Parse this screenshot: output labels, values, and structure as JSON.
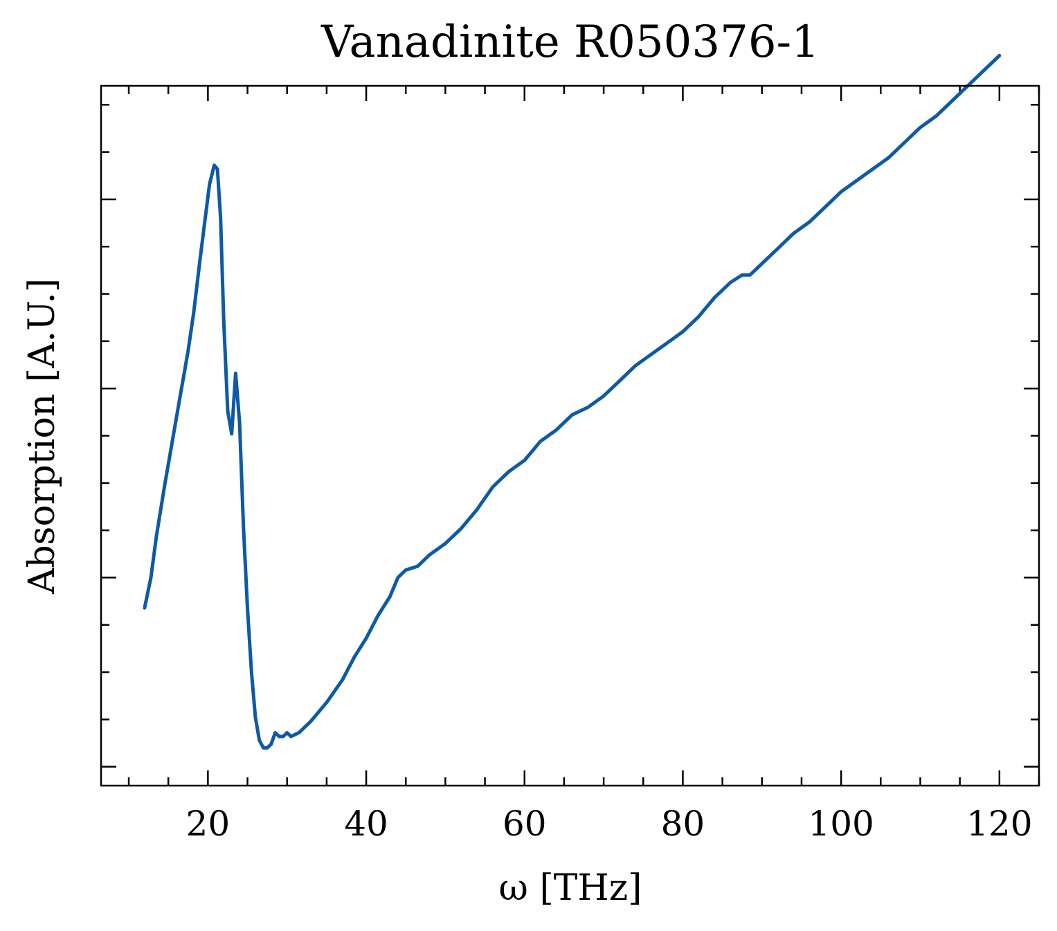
{
  "chart_data": {
    "type": "line",
    "title": "Vanadinite R050376-1",
    "xlabel": "ω [THz]",
    "ylabel": "Absorption [A.U.]",
    "xlim": [
      6.5,
      125
    ],
    "ylim": [
      -0.05,
      1.8
    ],
    "xticks": [
      20,
      40,
      60,
      80,
      100,
      120
    ],
    "xtick_labels": [
      "20",
      "40",
      "60",
      "80",
      "100",
      "120"
    ],
    "yticks": [
      0.0,
      0.5,
      1.0,
      1.5
    ],
    "ytick_labels_visible": false,
    "grid": false,
    "line_color": "#0d5aa7",
    "series": [
      {
        "x": [
          12.0,
          12.8,
          13.5,
          14.5,
          15.5,
          16.5,
          17.0,
          17.5,
          18.2,
          19.0,
          19.6,
          20.2,
          20.8,
          21.2,
          21.6,
          22.0,
          22.5,
          23.0,
          23.5,
          24.0,
          24.5,
          25.0,
          25.5,
          26.0,
          26.5,
          27.0,
          27.5,
          28.0,
          28.5,
          29.0,
          29.5,
          30.0,
          30.5,
          31.5,
          33.0,
          35.0,
          37.0,
          38.5,
          40.0,
          41.5,
          43.0,
          44.0,
          45.0,
          46.5,
          48.0,
          50.0,
          52.0,
          54.0,
          56.0,
          58.0,
          60.0,
          62.0,
          64.0,
          66.0,
          68.0,
          70.0,
          72.0,
          74.0,
          76.0,
          78.0,
          80.0,
          82.0,
          84.0,
          86.0,
          87.5,
          88.5,
          90.0,
          92.0,
          94.0,
          96.0,
          98.0,
          100.0,
          102.0,
          104.0,
          106.0,
          108.0,
          110.0,
          112.0,
          114.0,
          116.0,
          118.0,
          120.0
        ],
        "values": [
          0.42,
          0.5,
          0.61,
          0.74,
          0.86,
          0.98,
          1.04,
          1.1,
          1.2,
          1.34,
          1.44,
          1.54,
          1.59,
          1.58,
          1.45,
          1.18,
          0.94,
          0.88,
          1.04,
          0.91,
          0.63,
          0.42,
          0.25,
          0.13,
          0.07,
          0.05,
          0.05,
          0.06,
          0.09,
          0.08,
          0.08,
          0.09,
          0.08,
          0.09,
          0.12,
          0.17,
          0.23,
          0.29,
          0.34,
          0.4,
          0.45,
          0.5,
          0.52,
          0.53,
          0.56,
          0.59,
          0.63,
          0.68,
          0.74,
          0.78,
          0.81,
          0.86,
          0.89,
          0.93,
          0.95,
          0.98,
          1.02,
          1.06,
          1.09,
          1.12,
          1.15,
          1.19,
          1.24,
          1.28,
          1.3,
          1.3,
          1.33,
          1.37,
          1.41,
          1.44,
          1.48,
          1.52,
          1.55,
          1.58,
          1.61,
          1.65,
          1.69,
          1.72,
          1.76,
          1.8,
          1.84,
          1.88
        ]
      }
    ]
  }
}
